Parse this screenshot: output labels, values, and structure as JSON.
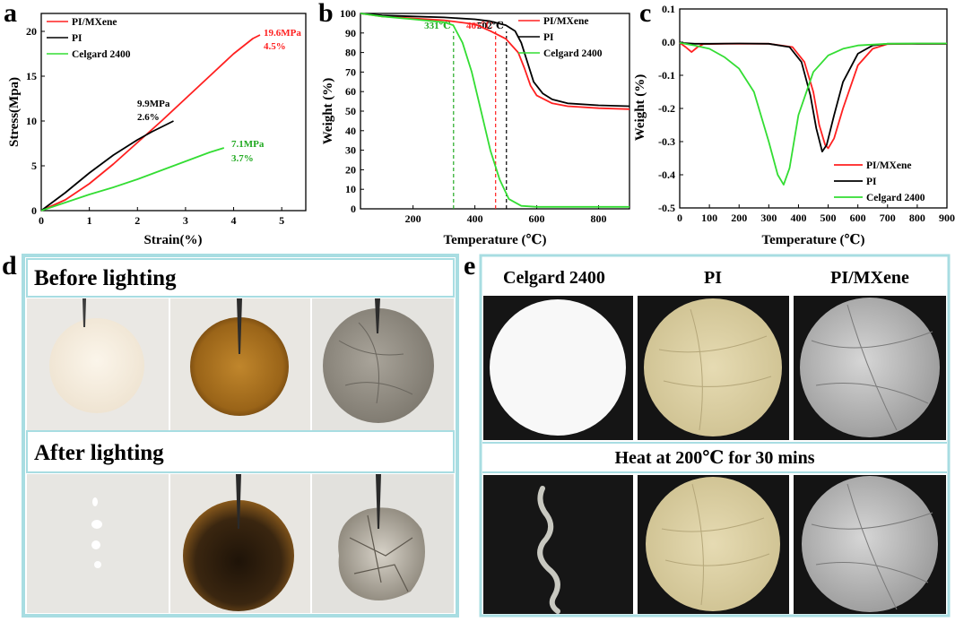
{
  "panels": {
    "a": "a",
    "b": "b",
    "c": "c",
    "d": "d",
    "e": "e"
  },
  "colors": {
    "pi_mxene": "#ff2020",
    "pi": "#000000",
    "celgard": "#33dd33"
  },
  "chart_data": [
    {
      "panel": "a",
      "type": "line",
      "xlabel": "Strain(%)",
      "ylabel": "Stress(Mpa)",
      "xlim": [
        0,
        5.5
      ],
      "ylim": [
        0,
        22
      ],
      "xticks": [
        0,
        1,
        2,
        3,
        4,
        5
      ],
      "yticks": [
        0,
        5,
        10,
        15,
        20
      ],
      "legend_position": "top-left",
      "series": [
        {
          "name": "PI/MXene",
          "color": "#ff2020",
          "x": [
            0,
            0.5,
            1.0,
            1.5,
            2.0,
            2.5,
            3.0,
            3.5,
            4.0,
            4.4,
            4.55
          ],
          "y": [
            0,
            1.2,
            3.0,
            5.2,
            7.6,
            10.0,
            12.5,
            15.0,
            17.5,
            19.2,
            19.6
          ]
        },
        {
          "name": "PI",
          "color": "#000000",
          "x": [
            0,
            0.5,
            1.0,
            1.5,
            2.0,
            2.3,
            2.6,
            2.75
          ],
          "y": [
            0,
            2.0,
            4.2,
            6.2,
            7.9,
            8.8,
            9.6,
            10.0
          ]
        },
        {
          "name": "Celgard 2400",
          "color": "#33dd33",
          "x": [
            0,
            0.5,
            1.0,
            1.5,
            2.0,
            2.5,
            3.0,
            3.5,
            3.8
          ],
          "y": [
            0,
            0.9,
            1.8,
            2.6,
            3.5,
            4.5,
            5.5,
            6.5,
            7.0
          ]
        }
      ],
      "annotations": [
        {
          "text": "19.6MPa",
          "color": "#ff2020"
        },
        {
          "text": "4.5%",
          "color": "#ff2020"
        },
        {
          "text": "9.9MPa",
          "color": "#000000"
        },
        {
          "text": "2.6%",
          "color": "#000000"
        },
        {
          "text": "7.1MPa",
          "color": "#22aa22"
        },
        {
          "text": "3.7%",
          "color": "#22aa22"
        }
      ]
    },
    {
      "panel": "b",
      "type": "line",
      "xlabel": "Temperature (℃)",
      "ylabel": "Weight (%)",
      "xlim": [
        30,
        900
      ],
      "ylim": [
        0,
        100
      ],
      "xticks": [
        200,
        400,
        600,
        800
      ],
      "yticks": [
        0,
        10,
        20,
        30,
        40,
        50,
        60,
        70,
        80,
        90,
        100
      ],
      "legend_position": "top-right",
      "series": [
        {
          "name": "PI/MXene",
          "color": "#ff2020",
          "x": [
            30,
            100,
            200,
            300,
            400,
            450,
            500,
            540,
            560,
            580,
            600,
            650,
            700,
            800,
            900
          ],
          "y": [
            100,
            98.5,
            97.5,
            96.5,
            94.5,
            91,
            87,
            80,
            72,
            63,
            58,
            54,
            52.5,
            51.5,
            51
          ]
        },
        {
          "name": "PI",
          "color": "#000000",
          "x": [
            30,
            100,
            200,
            300,
            400,
            450,
            500,
            530,
            550,
            570,
            590,
            620,
            650,
            700,
            800,
            900
          ],
          "y": [
            100,
            99,
            98.5,
            98,
            97,
            96,
            94,
            91,
            85,
            75,
            65,
            59,
            56,
            54,
            53,
            52.5
          ]
        },
        {
          "name": "Celgard 2400",
          "color": "#33dd33",
          "x": [
            30,
            100,
            200,
            300,
            330,
            360,
            390,
            420,
            450,
            480,
            510,
            550,
            600,
            700,
            900
          ],
          "y": [
            100,
            98.5,
            97,
            95.5,
            94,
            85,
            70,
            50,
            30,
            15,
            5,
            1.5,
            1,
            1,
            1
          ]
        }
      ],
      "markers": [
        {
          "x": 331,
          "label": "331℃",
          "color": "#22aa22"
        },
        {
          "x": 467,
          "label": "467℃",
          "color": "#ff2020"
        },
        {
          "x": 502,
          "label": "502℃",
          "color": "#000000"
        }
      ]
    },
    {
      "panel": "c",
      "type": "line",
      "xlabel": "Temperature (℃)",
      "ylabel": "Weight (%)",
      "xlim": [
        0,
        900
      ],
      "ylim": [
        -0.5,
        0.1
      ],
      "xticks": [
        0,
        100,
        200,
        300,
        400,
        500,
        600,
        700,
        800,
        900
      ],
      "yticks": [
        0.1,
        0.0,
        -0.1,
        -0.2,
        -0.3,
        -0.4,
        -0.5
      ],
      "ytick_labels": [
        "0.1",
        "0.0",
        "-0.1",
        "-0.2",
        "-0.3",
        "-0.4",
        "-0.5"
      ],
      "legend_position": "bottom-right",
      "series": [
        {
          "name": "PI/MXene",
          "color": "#ff2020",
          "x": [
            0,
            20,
            40,
            60,
            80,
            150,
            300,
            380,
            420,
            450,
            470,
            490,
            500,
            520,
            550,
            600,
            650,
            700,
            800,
            900
          ],
          "y": [
            -0.002,
            -0.015,
            -0.03,
            -0.015,
            -0.006,
            -0.005,
            -0.005,
            -0.015,
            -0.06,
            -0.15,
            -0.25,
            -0.31,
            -0.32,
            -0.29,
            -0.2,
            -0.07,
            -0.02,
            -0.006,
            -0.005,
            -0.005
          ]
        },
        {
          "name": "PI",
          "color": "#000000",
          "x": [
            0,
            50,
            100,
            200,
            300,
            370,
            410,
            440,
            460,
            480,
            495,
            520,
            550,
            600,
            650,
            700,
            800,
            900
          ],
          "y": [
            -0.002,
            -0.005,
            -0.005,
            -0.004,
            -0.005,
            -0.015,
            -0.06,
            -0.16,
            -0.26,
            -0.33,
            -0.31,
            -0.22,
            -0.12,
            -0.035,
            -0.01,
            -0.005,
            -0.005,
            -0.005
          ]
        },
        {
          "name": "Celgard 2400",
          "color": "#33dd33",
          "x": [
            0,
            50,
            100,
            150,
            200,
            250,
            300,
            330,
            350,
            370,
            400,
            450,
            500,
            550,
            600,
            700,
            800,
            900
          ],
          "y": [
            -0.002,
            -0.01,
            -0.02,
            -0.045,
            -0.08,
            -0.15,
            -0.3,
            -0.4,
            -0.43,
            -0.38,
            -0.22,
            -0.09,
            -0.04,
            -0.02,
            -0.01,
            -0.005,
            -0.004,
            -0.004
          ]
        }
      ]
    }
  ],
  "panel_d": {
    "before_heading": "Before lighting",
    "after_heading": "After lighting",
    "samples": [
      "Celgard 2400",
      "PI",
      "PI/MXene"
    ]
  },
  "panel_e": {
    "headers": [
      "Celgard 2400",
      "PI",
      "PI/MXene"
    ],
    "heat_caption": "Heat at 200℃ for 30 mins"
  }
}
